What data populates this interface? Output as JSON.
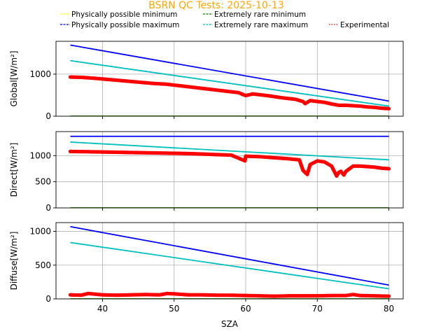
{
  "title": "BSRN QC Tests: 2025-10-13",
  "title_color": "#ffa500",
  "legend": {
    "placement": "top",
    "entries": [
      {
        "label": "Physically possible minimum",
        "color": "#ffff00",
        "style": "dashed"
      },
      {
        "label": "Physically possible maximum",
        "color": "#0000ff",
        "style": "dashed"
      },
      {
        "label": "Extremely rare minimum",
        "color": "#008000",
        "style": "dashed"
      },
      {
        "label": "Extremely rare maximum",
        "color": "#00bfbf",
        "style": "dashed"
      },
      {
        "label": "Experimental",
        "color": "#ff0000",
        "style": "dotted"
      }
    ]
  },
  "chart_data": [
    {
      "type": "line",
      "ylabel": "Global[W/m²]",
      "xlim": [
        33.5,
        82
      ],
      "ylim": [
        0,
        1780
      ],
      "yticks": [
        0,
        1000
      ],
      "grid": true,
      "series": [
        {
          "name": "Physically possible minimum",
          "color": "#ffff00",
          "x": [
            35.5,
            80
          ],
          "y": [
            0,
            0
          ]
        },
        {
          "name": "Extremely rare minimum",
          "color": "#008000",
          "x": [
            35.5,
            80
          ],
          "y": [
            0,
            0
          ]
        },
        {
          "name": "Physically possible maximum",
          "color": "#0000ff",
          "x": [
            35.5,
            80
          ],
          "y": [
            1690,
            360
          ]
        },
        {
          "name": "Extremely rare maximum",
          "color": "#00bfbf",
          "x": [
            35.5,
            80
          ],
          "y": [
            1320,
            240
          ]
        },
        {
          "name": "Experimental",
          "color": "#ff0000",
          "kind": "scatter",
          "x": [
            35.5,
            37,
            39,
            41,
            43,
            45,
            47,
            49,
            51,
            53,
            55,
            57,
            59,
            60,
            61,
            63,
            65,
            67,
            68,
            68.3,
            68.6,
            69,
            71,
            72,
            73,
            74,
            75,
            76,
            77,
            78,
            79,
            80
          ],
          "y": [
            930,
            925,
            900,
            870,
            840,
            810,
            780,
            760,
            720,
            680,
            640,
            600,
            560,
            490,
            530,
            490,
            440,
            400,
            350,
            300,
            330,
            370,
            330,
            290,
            260,
            260,
            250,
            240,
            220,
            210,
            190,
            180
          ]
        }
      ]
    },
    {
      "type": "line",
      "ylabel": "Direct[W/m²]",
      "xlim": [
        33.5,
        82
      ],
      "ylim": [
        0,
        1460
      ],
      "yticks": [
        0,
        500,
        1000
      ],
      "grid": true,
      "series": [
        {
          "name": "Physically possible minimum",
          "color": "#ffff00",
          "x": [
            35.5,
            80
          ],
          "y": [
            0,
            0
          ]
        },
        {
          "name": "Extremely rare minimum",
          "color": "#008000",
          "x": [
            35.5,
            80
          ],
          "y": [
            0,
            0
          ]
        },
        {
          "name": "Physically possible maximum",
          "color": "#0000ff",
          "x": [
            35.5,
            80
          ],
          "y": [
            1370,
            1370
          ]
        },
        {
          "name": "Extremely rare maximum",
          "color": "#00bfbf",
          "x": [
            35.5,
            80
          ],
          "y": [
            1260,
            920
          ]
        },
        {
          "name": "Experimental",
          "color": "#ff0000",
          "kind": "scatter",
          "x": [
            35.5,
            38,
            40,
            42,
            44,
            46,
            48,
            50,
            52,
            54,
            56,
            58,
            59.9,
            60,
            62,
            64,
            66,
            67.5,
            68,
            68.3,
            68.6,
            69,
            70,
            71,
            72,
            72.7,
            73,
            73.3,
            73.7,
            74,
            75,
            76,
            77,
            78,
            79,
            80
          ],
          "y": [
            1080,
            1075,
            1070,
            1065,
            1060,
            1055,
            1050,
            1045,
            1040,
            1030,
            1020,
            1010,
            900,
            990,
            980,
            960,
            940,
            920,
            720,
            680,
            640,
            830,
            900,
            880,
            800,
            610,
            680,
            700,
            630,
            700,
            800,
            800,
            790,
            780,
            760,
            750
          ]
        }
      ]
    },
    {
      "type": "line",
      "ylabel": "Diffuse[W/m²]",
      "xlabel": "SZA",
      "xlim": [
        33.5,
        82
      ],
      "ylim": [
        0,
        1130
      ],
      "yticks": [
        0,
        500,
        1000
      ],
      "xticks": [
        40,
        50,
        60,
        70,
        80
      ],
      "grid": true,
      "series": [
        {
          "name": "Physically possible minimum",
          "color": "#ffff00",
          "x": [
            35.5,
            80
          ],
          "y": [
            0,
            0
          ]
        },
        {
          "name": "Extremely rare minimum",
          "color": "#008000",
          "x": [
            35.5,
            80
          ],
          "y": [
            0,
            0
          ]
        },
        {
          "name": "Physically possible maximum",
          "color": "#0000ff",
          "x": [
            35.5,
            80
          ],
          "y": [
            1070,
            205
          ]
        },
        {
          "name": "Extremely rare maximum",
          "color": "#00bfbf",
          "x": [
            35.5,
            80
          ],
          "y": [
            835,
            150
          ]
        },
        {
          "name": "Experimental",
          "color": "#ff0000",
          "kind": "scatter",
          "x": [
            35.5,
            37,
            38,
            39,
            40,
            42,
            44,
            46,
            48,
            49,
            50,
            52,
            54,
            56,
            58,
            60,
            62,
            64,
            66,
            68,
            70,
            72,
            74,
            75,
            76,
            78,
            80
          ],
          "y": [
            60,
            55,
            80,
            70,
            60,
            55,
            60,
            65,
            60,
            80,
            75,
            60,
            60,
            55,
            55,
            50,
            45,
            40,
            45,
            45,
            45,
            50,
            50,
            65,
            50,
            45,
            40
          ]
        }
      ]
    }
  ]
}
